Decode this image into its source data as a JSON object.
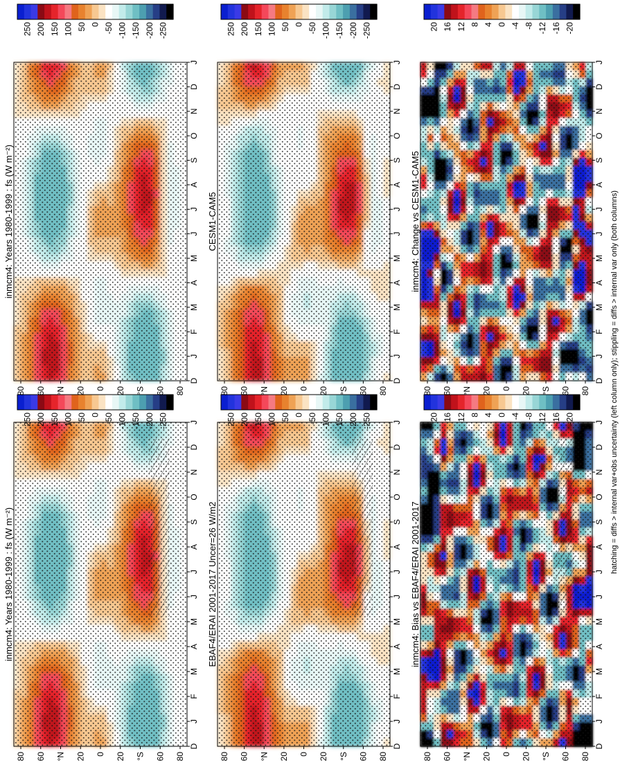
{
  "footnote": "hatching = diffs > internal var+obs uncertainty (left column only); stippling = diffs > internal var only (both columns)",
  "months": [
    "D",
    "J",
    "F",
    "M",
    "A",
    "M",
    "J",
    "J",
    "A",
    "S",
    "O",
    "N",
    "D",
    "J"
  ],
  "lat_ticks": [
    "80",
    "60",
    "°N",
    "20",
    "0",
    "20",
    "°S",
    "60",
    "80"
  ],
  "colorbars": {
    "main": {
      "labels": [
        "250",
        "200",
        "150",
        "100",
        "50",
        "0",
        "-50",
        "-100",
        "-150",
        "-200",
        "-250"
      ],
      "colors": [
        "#0a1fd0",
        "#2233dd",
        "#3a3ae6",
        "#8b0a14",
        "#c0121b",
        "#e5242b",
        "#f4485a",
        "#f57a82",
        "#e0631c",
        "#e8822e",
        "#efa255",
        "#f7c891",
        "#fbe3c3",
        "#ffffff",
        "#e8f7f6",
        "#c2ebea",
        "#98d6d6",
        "#6fbfc4",
        "#4d9fb0",
        "#3a6fa0",
        "#263e86",
        "#111a4f",
        "#000000"
      ]
    },
    "diff": {
      "labels": [
        "20",
        "16",
        "12",
        "8",
        "4",
        "0",
        "-4",
        "-8",
        "-12",
        "-16",
        "-20"
      ],
      "colors": [
        "#0a1fd0",
        "#2233dd",
        "#3a3ae6",
        "#8b0a14",
        "#c0121b",
        "#e5242b",
        "#f4485a",
        "#f57a82",
        "#e0631c",
        "#e8822e",
        "#efa255",
        "#f7c891",
        "#fbe3c3",
        "#ffffff",
        "#e8f7f6",
        "#c2ebea",
        "#98d6d6",
        "#6fbfc4",
        "#4d9fb0",
        "#3a6fa0",
        "#263e86",
        "#111a4f",
        "#000000"
      ]
    }
  },
  "chart_data": [
    {
      "id": "left-top",
      "type": "heatmap",
      "title": "inmcm4: Years 1980-1999 : fs (W m⁻²)",
      "variable": "fs",
      "units": "W m-2",
      "colorbar": "main",
      "x": "month",
      "y": "latitude",
      "hatching": true
    },
    {
      "id": "right-top",
      "type": "heatmap",
      "title": "inmcm4: Years 1980-1999 : fs (W m⁻²)",
      "variable": "fs",
      "units": "W m-2",
      "colorbar": "main",
      "x": "month",
      "y": "latitude",
      "hatching": false
    },
    {
      "id": "left-mid",
      "type": "heatmap",
      "title": "EBAF4/ERAI 2001-2017 Uncer=26 W/m2",
      "colorbar": "main",
      "x": "month",
      "y": "latitude",
      "hatching": true
    },
    {
      "id": "right-mid",
      "type": "heatmap",
      "title": "CESM1-CAM5",
      "colorbar": "main",
      "x": "month",
      "y": "latitude",
      "hatching": false
    },
    {
      "id": "left-bot",
      "type": "heatmap",
      "title": "inmcm4: Bias vs EBAF4/ERAI 2001-2017",
      "colorbar": "diff",
      "x": "month",
      "y": "latitude",
      "hatching": true
    },
    {
      "id": "right-bot",
      "type": "heatmap",
      "title": "inmcm4: Change vs CESM1-CAM5",
      "colorbar": "diff",
      "x": "month",
      "y": "latitude",
      "hatching": false
    }
  ]
}
